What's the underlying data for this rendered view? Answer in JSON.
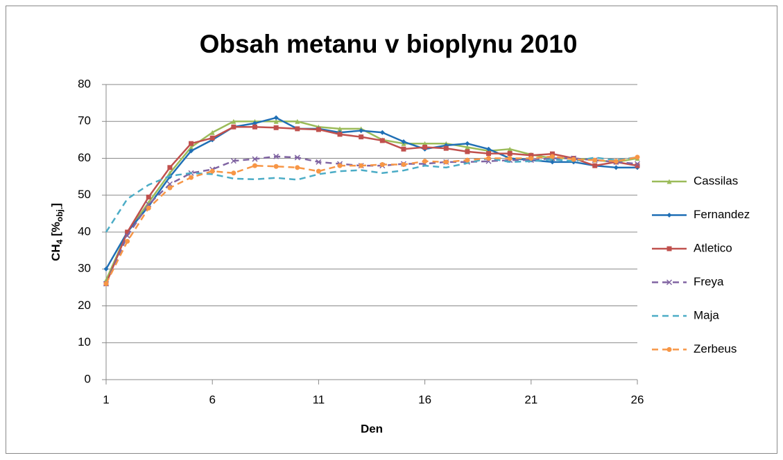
{
  "chart_data": {
    "type": "line",
    "title": "Obsah metanu v bioplynu  2010",
    "xlabel": "Den",
    "ylabel_parts": [
      "CH",
      "4",
      " [%",
      "obj.",
      "]"
    ],
    "x": [
      1,
      2,
      3,
      4,
      5,
      6,
      7,
      8,
      9,
      10,
      11,
      12,
      13,
      14,
      15,
      16,
      17,
      18,
      19,
      20,
      21,
      22,
      23,
      24,
      25,
      26
    ],
    "xlim": [
      1,
      26
    ],
    "xticks": [
      1,
      6,
      11,
      16,
      21,
      26
    ],
    "ylim": [
      0,
      80
    ],
    "yticks": [
      0,
      10,
      20,
      30,
      40,
      50,
      60,
      70,
      80
    ],
    "grid": true,
    "legend": "right",
    "series": [
      {
        "name": "Cassilas",
        "color": "#9bbb59",
        "marker": "triangle",
        "dash": false,
        "values": [
          27,
          40,
          48,
          56,
          63,
          67,
          70,
          70,
          70,
          70,
          68.5,
          68,
          68,
          65,
          64,
          64,
          64,
          63,
          62,
          62.5,
          61,
          60,
          60,
          59.5,
          59,
          60
        ]
      },
      {
        "name": "Fernandez",
        "color": "#1f6fb5",
        "marker": "diamond",
        "dash": false,
        "values": [
          30,
          40,
          47,
          55,
          62,
          65,
          68.5,
          69.5,
          71,
          68,
          68,
          67,
          67.5,
          67,
          64.5,
          62.5,
          63.5,
          64,
          62.5,
          60,
          59.5,
          59,
          59,
          58,
          57.5,
          57.5
        ]
      },
      {
        "name": "Atletico",
        "color": "#c0504d",
        "marker": "square",
        "dash": false,
        "values": [
          26,
          40,
          49.5,
          57.5,
          64,
          65.5,
          68.5,
          68.5,
          68.3,
          68,
          67.8,
          66.5,
          65.8,
          64.8,
          62.5,
          63,
          62.7,
          61.8,
          61.3,
          61.3,
          60.8,
          61.2,
          60,
          58,
          59,
          58
        ]
      },
      {
        "name": "Freya",
        "color": "#8064a2",
        "marker": "x",
        "dash": true,
        "values": [
          26,
          39,
          47.5,
          53,
          56,
          57,
          59.3,
          59.8,
          60.5,
          60.2,
          59,
          58.5,
          58,
          58,
          58.5,
          58.5,
          59,
          59,
          59.2,
          59.5,
          59.5,
          60,
          60,
          59.5,
          59,
          58.5
        ]
      },
      {
        "name": "Maja",
        "color": "#4bacc6",
        "marker": "none",
        "dash": true,
        "values": [
          40,
          49,
          52.8,
          55.2,
          56,
          55.7,
          54.5,
          54.3,
          54.7,
          54.2,
          55.7,
          56.5,
          56.8,
          56,
          56.7,
          58,
          57.5,
          58.7,
          60,
          59,
          59.2,
          59.7,
          59.2,
          60.2,
          59.5,
          60.3
        ]
      },
      {
        "name": "Zerbeus",
        "color": "#f79646",
        "marker": "circle",
        "dash": true,
        "values": [
          26,
          37.5,
          46.5,
          52,
          54.8,
          56.5,
          56,
          58,
          57.8,
          57.5,
          56.5,
          58,
          58,
          58.3,
          58.3,
          59.2,
          59,
          59.5,
          60,
          60,
          60,
          60.5,
          59.7,
          59.5,
          59.2,
          60.3
        ]
      }
    ]
  }
}
